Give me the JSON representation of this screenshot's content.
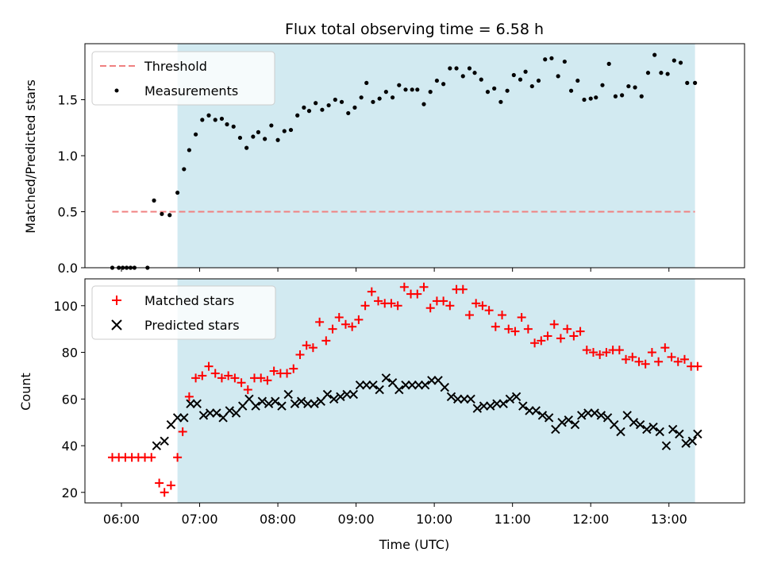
{
  "chart_data": [
    {
      "type": "scatter",
      "title": "Flux total observing time = 6.58 h",
      "ylabel": "Matched/Predicted stars",
      "xlim": [
        "05:32",
        "13:58"
      ],
      "ylim": [
        0,
        2.0
      ],
      "yticks": [
        0.0,
        0.5,
        1.0,
        1.5
      ],
      "ytick_labels": [
        "0.0",
        "0.5",
        "1.0",
        "1.5"
      ],
      "shaded_span": [
        "06:43",
        "13:20"
      ],
      "shade_color": "#add8e6",
      "legend_position": "top-left",
      "series": [
        {
          "name": "Threshold",
          "kind": "dashed-line",
          "color": "#f08080",
          "x": [
            "05:53",
            "13:20"
          ],
          "y": [
            0.5,
            0.5
          ]
        },
        {
          "name": "Measurements",
          "kind": "dots",
          "color": "#000000",
          "x": [
            "05:53",
            "05:58",
            "06:01",
            "06:04",
            "06:07",
            "06:10",
            "06:20",
            "06:25",
            "06:31",
            "06:37",
            "06:43",
            "06:48",
            "06:52",
            "06:57",
            "07:02",
            "07:07",
            "07:12",
            "07:17",
            "07:21",
            "07:26",
            "07:31",
            "07:36",
            "07:41",
            "07:45",
            "07:50",
            "07:55",
            "08:00",
            "08:05",
            "08:10",
            "08:15",
            "08:20",
            "08:24",
            "08:29",
            "08:34",
            "08:39",
            "08:44",
            "08:49",
            "08:54",
            "08:59",
            "09:04",
            "09:08",
            "09:13",
            "09:18",
            "09:23",
            "09:28",
            "09:33",
            "09:38",
            "09:43",
            "09:47",
            "09:52",
            "09:57",
            "10:02",
            "10:07",
            "10:12",
            "10:17",
            "10:22",
            "10:27",
            "10:31",
            "10:36",
            "10:41",
            "10:46",
            "10:51",
            "10:56",
            "11:01",
            "11:06",
            "11:10",
            "11:15",
            "11:20",
            "11:25",
            "11:30",
            "11:35",
            "11:40",
            "11:45",
            "11:50",
            "11:55",
            "12:00",
            "12:04",
            "12:09",
            "12:14",
            "12:19",
            "12:24",
            "12:29",
            "12:34",
            "12:39",
            "12:44",
            "12:49",
            "12:54",
            "12:59",
            "13:04",
            "13:09",
            "13:14",
            "13:20"
          ],
          "y": [
            0.0,
            0.0,
            0.0,
            0.0,
            0.0,
            0.0,
            0.0,
            0.6,
            0.48,
            0.47,
            0.67,
            0.88,
            1.05,
            1.19,
            1.32,
            1.36,
            1.32,
            1.33,
            1.28,
            1.26,
            1.16,
            1.07,
            1.17,
            1.21,
            1.15,
            1.27,
            1.14,
            1.22,
            1.23,
            1.36,
            1.43,
            1.4,
            1.47,
            1.41,
            1.45,
            1.5,
            1.48,
            1.38,
            1.43,
            1.52,
            1.65,
            1.48,
            1.51,
            1.57,
            1.52,
            1.63,
            1.59,
            1.59,
            1.59,
            1.46,
            1.57,
            1.67,
            1.64,
            1.78,
            1.78,
            1.71,
            1.78,
            1.74,
            1.68,
            1.57,
            1.6,
            1.48,
            1.58,
            1.72,
            1.68,
            1.75,
            1.62,
            1.67,
            1.86,
            1.87,
            1.71,
            1.84,
            1.58,
            1.67,
            1.5,
            1.51,
            1.52,
            1.63,
            1.82,
            1.53,
            1.54,
            1.62,
            1.61,
            1.53,
            1.74,
            1.9,
            1.74,
            1.73,
            1.85,
            1.83,
            1.65,
            1.65
          ]
        }
      ]
    },
    {
      "type": "scatter",
      "xlabel": "Time (UTC)",
      "ylabel": "Count",
      "xlim": [
        "05:32",
        "13:58"
      ],
      "ylim": [
        15.5,
        111.5
      ],
      "xticks": [
        "06:00",
        "07:00",
        "08:00",
        "09:00",
        "10:00",
        "11:00",
        "12:00",
        "13:00"
      ],
      "yticks": [
        20,
        40,
        60,
        80,
        100
      ],
      "ytick_labels": [
        "20",
        "40",
        "60",
        "80",
        "100"
      ],
      "shaded_span": [
        "06:43",
        "13:20"
      ],
      "shade_color": "#add8e6",
      "legend_position": "top-left",
      "series": [
        {
          "name": "Matched stars",
          "marker": "plus",
          "color": "#ff0000",
          "x": [
            "05:53",
            "05:58",
            "06:03",
            "06:08",
            "06:13",
            "06:18",
            "06:23",
            "06:29",
            "06:33",
            "06:38",
            "06:43",
            "06:47",
            "06:52",
            "06:57",
            "07:02",
            "07:07",
            "07:12",
            "07:17",
            "07:22",
            "07:27",
            "07:32",
            "07:37",
            "07:42",
            "07:47",
            "07:52",
            "07:57",
            "08:02",
            "08:07",
            "08:12",
            "08:17",
            "08:22",
            "08:27",
            "08:32",
            "08:37",
            "08:42",
            "08:47",
            "08:52",
            "08:57",
            "09:02",
            "09:07",
            "09:12",
            "09:17",
            "09:22",
            "09:27",
            "09:32",
            "09:37",
            "09:42",
            "09:47",
            "09:52",
            "09:57",
            "10:02",
            "10:07",
            "10:12",
            "10:17",
            "10:22",
            "10:27",
            "10:32",
            "10:37",
            "10:42",
            "10:47",
            "10:52",
            "10:57",
            "11:02",
            "11:07",
            "11:12",
            "11:17",
            "11:22",
            "11:27",
            "11:32",
            "11:37",
            "11:42",
            "11:47",
            "11:52",
            "11:57",
            "12:02",
            "12:07",
            "12:12",
            "12:17",
            "12:22",
            "12:27",
            "12:32",
            "12:37",
            "12:42",
            "12:47",
            "12:52",
            "12:57",
            "13:02",
            "13:07",
            "13:12",
            "13:17",
            "13:22"
          ],
          "y": [
            35,
            35,
            35,
            35,
            35,
            35,
            35,
            24,
            20,
            23,
            35,
            46,
            61,
            69,
            70,
            74,
            71,
            69,
            70,
            69,
            67,
            64,
            69,
            69,
            68,
            72,
            71,
            71,
            73,
            79,
            83,
            82,
            93,
            85,
            90,
            95,
            92,
            91,
            94,
            100,
            106,
            102,
            101,
            101,
            100,
            108,
            105,
            105,
            108,
            99,
            102,
            102,
            100,
            107,
            107,
            96,
            101,
            100,
            98,
            91,
            96,
            90,
            89,
            95,
            90,
            84,
            85,
            87,
            92,
            86,
            90,
            87,
            89,
            81,
            80,
            79,
            80,
            81,
            81,
            77,
            78,
            76,
            75,
            80,
            76,
            82,
            78,
            76,
            77,
            74,
            74
          ]
        },
        {
          "name": "Predicted stars",
          "marker": "x",
          "color": "#000000",
          "x": [
            "06:27",
            "06:33",
            "06:38",
            "06:43",
            "06:48",
            "06:53",
            "06:58",
            "07:03",
            "07:08",
            "07:13",
            "07:18",
            "07:23",
            "07:28",
            "07:33",
            "07:38",
            "07:43",
            "07:48",
            "07:53",
            "07:58",
            "08:03",
            "08:08",
            "08:13",
            "08:18",
            "08:23",
            "08:28",
            "08:33",
            "08:38",
            "08:43",
            "08:48",
            "08:53",
            "08:58",
            "09:03",
            "09:08",
            "09:13",
            "09:18",
            "09:23",
            "09:28",
            "09:33",
            "09:38",
            "09:43",
            "09:48",
            "09:53",
            "09:58",
            "10:03",
            "10:08",
            "10:13",
            "10:18",
            "10:23",
            "10:28",
            "10:33",
            "10:38",
            "10:43",
            "10:48",
            "10:53",
            "10:58",
            "11:03",
            "11:08",
            "11:13",
            "11:18",
            "11:23",
            "11:28",
            "11:33",
            "11:38",
            "11:43",
            "11:48",
            "11:53",
            "11:58",
            "12:03",
            "12:08",
            "12:13",
            "12:18",
            "12:23",
            "12:28",
            "12:33",
            "12:38",
            "12:43",
            "12:48",
            "12:53",
            "12:58",
            "13:03",
            "13:08",
            "13:13",
            "13:18",
            "13:22"
          ],
          "y": [
            40,
            42,
            49,
            52,
            52,
            58,
            58,
            53,
            54,
            54,
            52,
            55,
            54,
            57,
            60,
            57,
            59,
            58,
            59,
            57,
            62,
            58,
            59,
            58,
            58,
            59,
            62,
            60,
            61,
            62,
            62,
            66,
            66,
            66,
            64,
            69,
            67,
            64,
            66,
            66,
            66,
            66,
            68,
            68,
            65,
            61,
            60,
            60,
            60,
            56,
            57,
            57,
            58,
            58,
            60,
            61,
            57,
            55,
            55,
            53,
            52,
            47,
            50,
            51,
            49,
            53,
            54,
            54,
            53,
            52,
            49,
            46,
            53,
            50,
            49,
            47,
            48,
            46,
            40,
            47,
            45,
            41,
            42,
            45
          ]
        }
      ]
    }
  ]
}
